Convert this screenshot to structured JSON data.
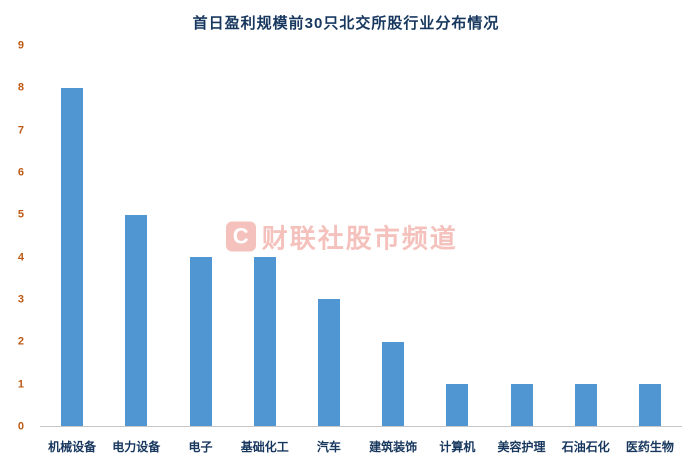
{
  "chart_data": {
    "type": "bar",
    "title": "首日盈利规模前30只北交所股行业分布情况",
    "categories": [
      "机械设备",
      "电力设备",
      "电子",
      "基础化工",
      "汽车",
      "建筑装饰",
      "计算机",
      "美容护理",
      "石油石化",
      "医药生物"
    ],
    "values": [
      8,
      5,
      4,
      4,
      3,
      2,
      1,
      1,
      1,
      1
    ],
    "xlabel": "",
    "ylabel": "",
    "ylim": [
      0,
      9
    ],
    "y_ticks": [
      0,
      1,
      2,
      3,
      4,
      5,
      6,
      7,
      8,
      9
    ],
    "grid": false,
    "legend": "none",
    "bar_color": "#4F96D3",
    "title_color": "#17375E",
    "x_tick_label_color": "#17375E",
    "y_tick_label_color": "#BE5A14"
  },
  "watermark": {
    "logo_letter": "C",
    "text": "财联社股市频道"
  }
}
